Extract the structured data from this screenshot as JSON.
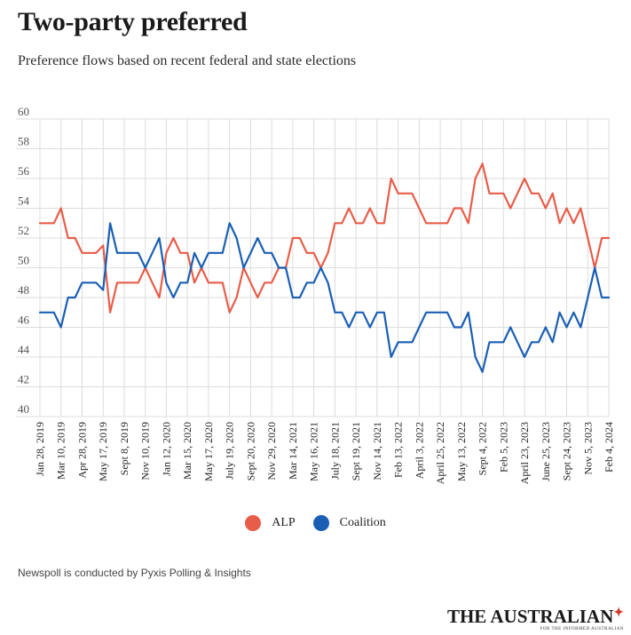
{
  "header": {
    "title": "Two-party preferred",
    "subtitle": "Preference flows based on recent federal and state elections"
  },
  "legend": {
    "items": [
      {
        "label": "ALP",
        "color": "#e85d4a"
      },
      {
        "label": "Coalition",
        "color": "#1a5fb4"
      }
    ]
  },
  "footer": {
    "note": "Newspoll is conducted by Pyxis Polling & Insights",
    "brand": "THE AUSTRALIAN",
    "brand_tagline": "FOR THE INFORMED AUSTRALIAN"
  },
  "chart_data": {
    "type": "line",
    "title": "Two-party preferred",
    "subtitle": "Preference flows based on recent federal and state elections",
    "ylim": [
      40,
      60
    ],
    "yticks": [
      40,
      42,
      44,
      46,
      48,
      50,
      52,
      54,
      56,
      58,
      60
    ],
    "grid": true,
    "legend_position": "bottom",
    "x_tick_labels": [
      "Jan 28, 2019",
      "Mar 10, 2019",
      "Apr 28, 2019",
      "May 17, 2019",
      "Sept 8, 2019",
      "Nov 10, 2019",
      "Jan 12, 2020",
      "Mar 15, 2020",
      "May 17, 2020",
      "July 19, 2020",
      "Sept 20, 2020",
      "Nov 29, 2020",
      "Mar 14, 2021",
      "May 16, 2021",
      "July 18, 2021",
      "Sept 19, 2021",
      "Nov 14, 2021",
      "Feb 13, 2022",
      "April 3, 2022",
      "April 25, 2022",
      "May 13, 2022",
      "Sept 4, 2022",
      "Feb 5, 2023",
      "April 23, 2023",
      "June 25, 2023",
      "Sept 24, 2023",
      "Nov 5, 2023",
      "Feb 4, 2024"
    ],
    "series": [
      {
        "name": "ALP",
        "color": "#e85d4a",
        "values": [
          53,
          53,
          53,
          54,
          52,
          52,
          51,
          51,
          51,
          51.5,
          47,
          49,
          49,
          49,
          49,
          50,
          49,
          48,
          51,
          52,
          51,
          51,
          49,
          50,
          49,
          49,
          49,
          47,
          48,
          50,
          49,
          48,
          49,
          49,
          50,
          50,
          52,
          52,
          51,
          51,
          50,
          51,
          53,
          53,
          54,
          53,
          53,
          54,
          53,
          53,
          56,
          55,
          55,
          55,
          54,
          53,
          53,
          53,
          53,
          54,
          54,
          53,
          56,
          57,
          55,
          55,
          55,
          54,
          55,
          56,
          55,
          55,
          54,
          55,
          53,
          54,
          53,
          54,
          52,
          50,
          52,
          52
        ]
      },
      {
        "name": "Coalition",
        "color": "#1a5fb4",
        "values": [
          47,
          47,
          47,
          46,
          48,
          48,
          49,
          49,
          49,
          48.5,
          53,
          51,
          51,
          51,
          51,
          50,
          51,
          52,
          49,
          48,
          49,
          49,
          51,
          50,
          51,
          51,
          51,
          53,
          52,
          50,
          51,
          52,
          51,
          51,
          50,
          50,
          48,
          48,
          49,
          49,
          50,
          49,
          47,
          47,
          46,
          47,
          47,
          46,
          47,
          47,
          44,
          45,
          45,
          45,
          46,
          47,
          47,
          47,
          47,
          46,
          46,
          47,
          44,
          43,
          45,
          45,
          45,
          46,
          45,
          44,
          45,
          45,
          46,
          45,
          47,
          46,
          47,
          46,
          48,
          50,
          48,
          48
        ]
      }
    ]
  }
}
